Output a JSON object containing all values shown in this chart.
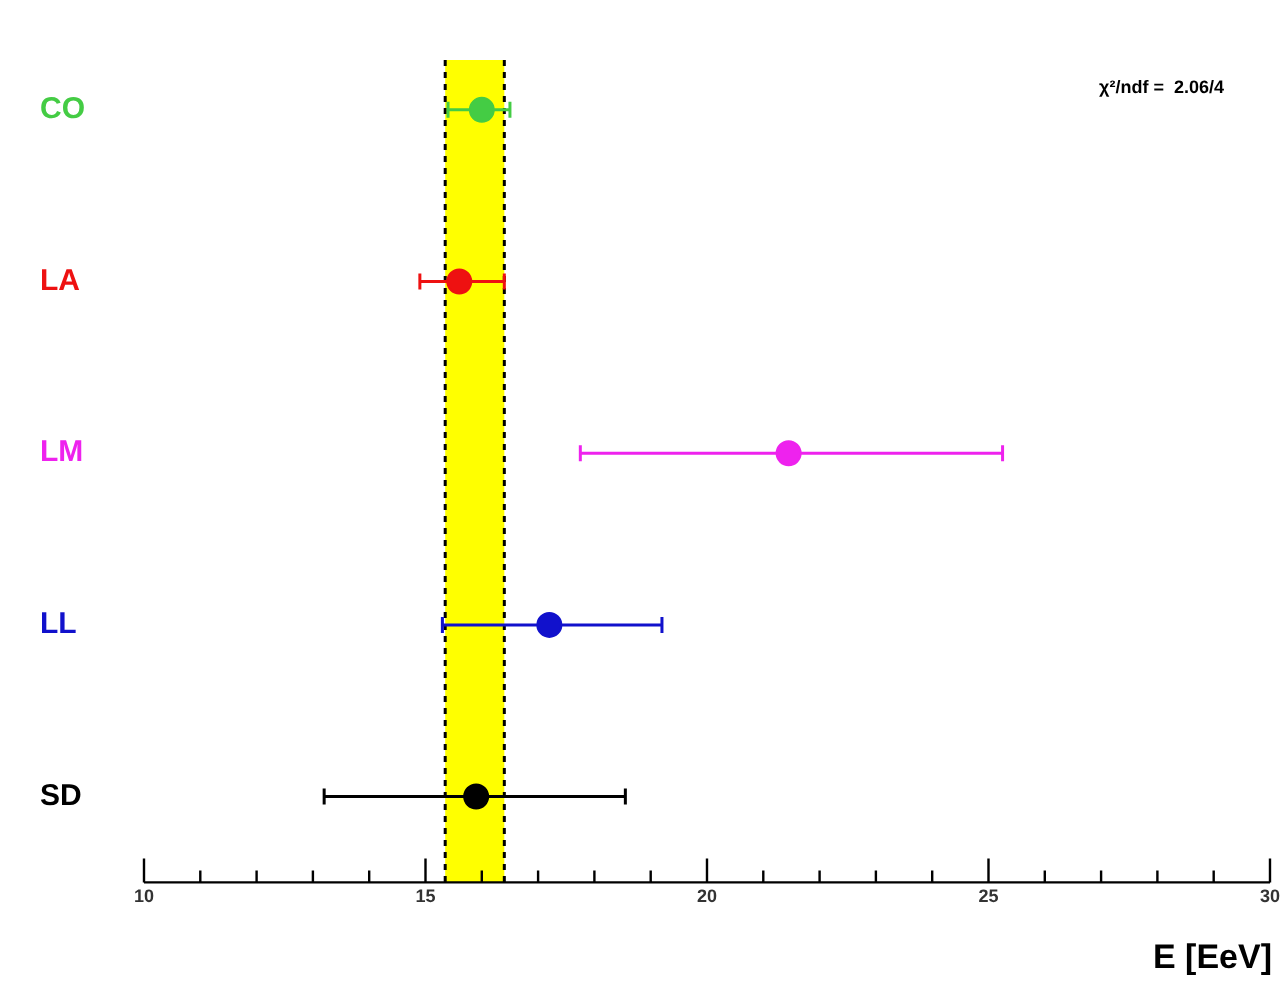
{
  "chart_data": {
    "type": "scatter",
    "orientation": "horizontal",
    "categories": [
      "CO",
      "LA",
      "LM",
      "LL",
      "SD"
    ],
    "values": [
      16.0,
      15.6,
      21.45,
      17.2,
      15.9
    ],
    "colors": [
      "#44cc44",
      "#ee1111",
      "#ee22ee",
      "#1111cc",
      "#000000"
    ],
    "errors": [
      [
        15.4,
        16.5
      ],
      [
        14.9,
        16.4
      ],
      [
        17.75,
        25.25
      ],
      [
        15.3,
        19.2
      ],
      [
        13.2,
        18.55
      ]
    ],
    "xlim": [
      10,
      30
    ],
    "xticks": [
      10,
      {
        "value": 11,
        "label": null
      },
      {
        "value": 12,
        "label": null
      },
      {
        "value": 13,
        "label": null
      },
      {
        "value": 14,
        "label": null
      },
      15,
      {
        "value": 16,
        "label": null
      },
      {
        "value": 17,
        "label": null
      },
      {
        "value": 18,
        "label": null
      },
      {
        "value": 19,
        "label": null
      },
      20,
      {
        "value": 21,
        "label": null
      },
      {
        "value": 22,
        "label": null
      },
      {
        "value": 23,
        "label": null
      },
      {
        "value": 24,
        "label": null
      },
      25,
      {
        "value": 26,
        "label": null
      },
      {
        "value": 27,
        "label": null
      },
      {
        "value": 28,
        "label": null
      },
      {
        "value": 29,
        "label": null
      },
      30
    ],
    "bands": [
      {
        "axis": "x",
        "from": 15.35,
        "to": 16.4,
        "color": "#ffff00"
      }
    ],
    "ref_lines": [
      {
        "axis": "x",
        "value": 15.35,
        "color": "#000000",
        "line_style": "dashed"
      },
      {
        "axis": "x",
        "value": 16.4,
        "color": "#000000",
        "line_style": "dashed"
      }
    ],
    "xlabel": "E [EeV]",
    "annotations": [
      "χ²/ndf =  2.06/4"
    ],
    "marker": "circle",
    "grid": false,
    "legend": false
  }
}
